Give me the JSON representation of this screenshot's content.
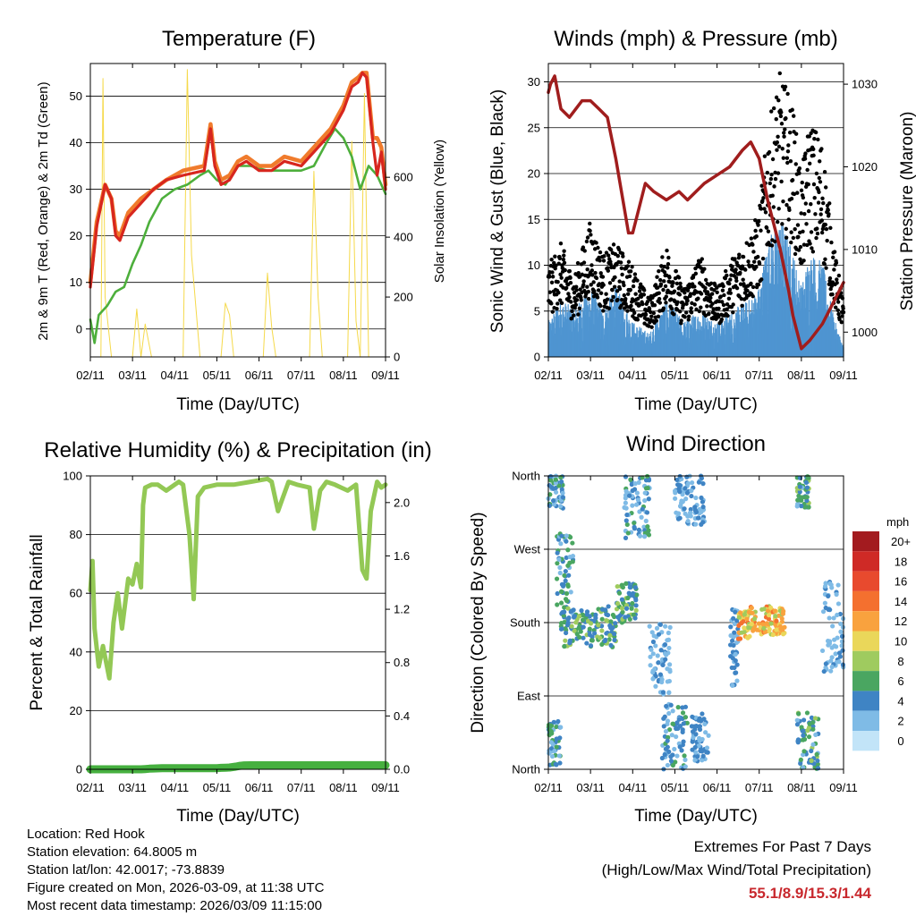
{
  "chart_data": [
    {
      "type": "line",
      "title": "Temperature (F)",
      "xlabel": "Time (Day/UTC)",
      "ylabel": "2m & 9m T (Red, Orange) & 2m Td (Green)",
      "y2label": "Solar Insolation (Yellow)",
      "x_ticks": [
        "02/11",
        "03/11",
        "04/11",
        "05/11",
        "06/11",
        "07/11",
        "08/11",
        "09/11"
      ],
      "ylim": [
        -6,
        57
      ],
      "y_ticks": [
        0,
        10,
        20,
        30,
        40,
        50
      ],
      "y2lim": [
        0,
        980
      ],
      "y2_ticks": [
        0,
        200,
        400,
        600
      ],
      "grid": true,
      "x_day_range": [
        0,
        7
      ],
      "series": [
        {
          "name": "2m T",
          "color": "#d7261e",
          "x": [
            0,
            0.15,
            0.35,
            0.5,
            0.6,
            0.7,
            0.9,
            1.2,
            1.5,
            1.8,
            2.2,
            2.7,
            2.85,
            2.95,
            3.1,
            3.3,
            3.5,
            3.7,
            4,
            4.3,
            4.6,
            5,
            5.3,
            5.7,
            6,
            6.2,
            6.35,
            6.45,
            6.55,
            6.7,
            6.8,
            6.9,
            7
          ],
          "values": [
            9,
            22,
            31,
            28,
            20,
            19,
            24,
            27,
            30,
            32,
            33,
            34,
            43,
            35,
            31,
            32,
            35,
            36,
            34,
            34,
            36,
            35,
            38,
            42,
            47,
            52,
            53,
            55,
            54,
            40,
            33,
            38,
            30
          ]
        },
        {
          "name": "9m T",
          "color": "#f07b2c",
          "x": [
            0,
            0.15,
            0.35,
            0.5,
            0.6,
            0.7,
            0.9,
            1.2,
            1.5,
            1.8,
            2.2,
            2.7,
            2.85,
            2.95,
            3.1,
            3.3,
            3.5,
            3.7,
            4,
            4.3,
            4.6,
            5,
            5.3,
            5.7,
            6,
            6.2,
            6.35,
            6.45,
            6.55,
            6.7,
            6.8,
            6.9,
            7
          ],
          "values": [
            10,
            23,
            31,
            28,
            21,
            20,
            25,
            28,
            30,
            32,
            34,
            35,
            44,
            36,
            32,
            33,
            36,
            37,
            35,
            35,
            37,
            36,
            39,
            43,
            48,
            53,
            54,
            55,
            55,
            41,
            41,
            39,
            31
          ]
        },
        {
          "name": "2m Td",
          "color": "#4daf3c",
          "x": [
            0,
            0.1,
            0.2,
            0.4,
            0.6,
            0.8,
            1.0,
            1.2,
            1.4,
            1.7,
            2.0,
            2.3,
            2.6,
            2.8,
            3.0,
            3.2,
            3.5,
            3.8,
            4.2,
            4.6,
            5.0,
            5.3,
            5.6,
            5.8,
            6.0,
            6.2,
            6.4,
            6.6,
            6.8,
            7
          ],
          "values": [
            2,
            -3,
            3,
            5,
            8,
            9,
            14,
            18,
            23,
            28,
            30,
            31,
            33,
            34,
            32,
            31,
            35,
            35,
            34,
            34,
            34,
            35,
            40,
            43,
            41,
            37,
            30,
            35,
            33,
            29
          ]
        },
        {
          "name": "Solar Insolation",
          "color": "#f5d94a",
          "axis": "y2",
          "x": [
            0,
            0.25,
            0.3,
            0.35,
            0.5,
            0.6,
            1.0,
            1.1,
            1.2,
            1.3,
            1.45,
            2.0,
            2.2,
            2.3,
            2.4,
            2.6,
            3.0,
            3.1,
            3.2,
            3.3,
            3.4,
            3.6,
            4.0,
            4.1,
            4.2,
            4.3,
            4.4,
            4.6,
            5.0,
            5.2,
            5.3,
            5.4,
            5.5,
            5.6,
            5.8,
            6.0,
            6.1,
            6.2,
            6.3,
            6.4,
            6.5,
            6.6,
            7
          ],
          "values": [
            0,
            0,
            930,
            200,
            0,
            0,
            0,
            160,
            0,
            110,
            0,
            0,
            0,
            960,
            340,
            0,
            0,
            0,
            180,
            140,
            0,
            0,
            0,
            0,
            280,
            100,
            0,
            0,
            0,
            0,
            620,
            200,
            0,
            0,
            0,
            0,
            0,
            720,
            120,
            0,
            880,
            0,
            0
          ]
        }
      ]
    },
    {
      "type": "line",
      "title": "Winds (mph) & Pressure (mb)",
      "xlabel": "Time (Day/UTC)",
      "ylabel": "Sonic Wind & Gust (Blue, Black)",
      "y2label": "Station Pressure (Maroon)",
      "x_ticks": [
        "02/11",
        "03/11",
        "04/11",
        "05/11",
        "06/11",
        "07/11",
        "08/11",
        "09/11"
      ],
      "ylim": [
        0,
        32
      ],
      "y_ticks": [
        0,
        5,
        10,
        15,
        20,
        25,
        30
      ],
      "y2lim": [
        997,
        1032.5
      ],
      "y2_ticks": [
        1000,
        1010,
        1020,
        1030
      ],
      "grid": true,
      "x_day_range": [
        0,
        7
      ],
      "series": [
        {
          "name": "Sonic Wind",
          "color": "#4f95d1",
          "x": [
            0,
            0.3,
            0.6,
            1.0,
            1.3,
            1.6,
            2.0,
            2.4,
            2.8,
            3.2,
            3.6,
            4.0,
            4.4,
            4.8,
            5.0,
            5.2,
            5.5,
            5.8,
            6.0,
            6.2,
            6.5,
            6.8,
            7
          ],
          "values": [
            3,
            5,
            4,
            6,
            4,
            6,
            3,
            2,
            5,
            3,
            4,
            3,
            4,
            5,
            6,
            10,
            12,
            9,
            6,
            9,
            8,
            3,
            1
          ]
        },
        {
          "name": "Gust",
          "color": "#000000",
          "x": [
            0,
            0.3,
            0.6,
            1.0,
            1.3,
            1.6,
            2.0,
            2.4,
            2.8,
            3.2,
            3.6,
            4.0,
            4.4,
            4.8,
            5.0,
            5.2,
            5.5,
            5.8,
            6.0,
            6.2,
            6.5,
            6.8,
            7
          ],
          "values": [
            8,
            10,
            7,
            12,
            9,
            10,
            8,
            5,
            10,
            6,
            9,
            6,
            9,
            11,
            13,
            20,
            25,
            22,
            16,
            21,
            19,
            9,
            5
          ]
        },
        {
          "name": "Station Pressure",
          "color": "#a01d1d",
          "axis": "y2",
          "x": [
            0,
            0.05,
            0.15,
            0.3,
            0.5,
            0.8,
            1.0,
            1.2,
            1.4,
            1.6,
            1.8,
            1.9,
            2.0,
            2.2,
            2.3,
            2.5,
            2.8,
            3.1,
            3.3,
            3.5,
            3.7,
            4.0,
            4.3,
            4.6,
            4.8,
            5.0,
            5.2,
            5.5,
            5.7,
            5.8,
            6.0,
            6.2,
            6.5,
            6.8,
            7
          ],
          "values": [
            1029,
            1030,
            1031,
            1027,
            1026,
            1028,
            1028,
            1027,
            1026,
            1021,
            1015,
            1012,
            1012,
            1016,
            1018,
            1017,
            1016,
            1017,
            1016,
            1017,
            1018,
            1019,
            1020,
            1022,
            1023,
            1021,
            1016,
            1010,
            1005,
            1002,
            998,
            999,
            1001,
            1004,
            1006
          ]
        }
      ]
    },
    {
      "type": "line",
      "title": "Relative Humidity (%) & Precipitation (in)",
      "xlabel": "Time (Day/UTC)",
      "ylabel": "Percent & Total Rainfall",
      "x_ticks": [
        "02/11",
        "03/11",
        "04/11",
        "05/11",
        "06/11",
        "07/11",
        "08/11",
        "09/11"
      ],
      "ylim": [
        0,
        100
      ],
      "y_ticks": [
        0,
        20,
        40,
        60,
        80,
        100
      ],
      "y2lim": [
        0,
        2.2
      ],
      "y2_ticks": [
        0.0,
        0.4,
        0.8,
        1.2,
        1.6,
        2.0
      ],
      "y2_tick_labels": [
        "0.0",
        "0.4",
        "0.8",
        "1.2",
        "1.6",
        "2.0"
      ],
      "grid": true,
      "x_day_range": [
        0,
        7
      ],
      "series": [
        {
          "name": "Relative Humidity",
          "color": "#93c855",
          "x": [
            0,
            0.05,
            0.1,
            0.2,
            0.3,
            0.45,
            0.55,
            0.65,
            0.75,
            0.9,
            1.0,
            1.1,
            1.2,
            1.25,
            1.3,
            1.45,
            1.6,
            1.8,
            2.0,
            2.1,
            2.2,
            2.35,
            2.45,
            2.55,
            2.7,
            3.0,
            3.4,
            3.8,
            4.2,
            4.3,
            4.45,
            4.55,
            4.7,
            4.9,
            5.2,
            5.3,
            5.45,
            5.6,
            5.8,
            5.95,
            6.1,
            6.3,
            6.45,
            6.55,
            6.65,
            6.8,
            6.9,
            7
          ],
          "values": [
            61,
            71,
            48,
            35,
            42,
            31,
            50,
            60,
            48,
            65,
            63,
            70,
            62,
            90,
            96,
            97,
            97,
            95,
            97,
            98,
            97,
            80,
            58,
            93,
            96,
            97,
            97,
            98,
            99,
            98,
            88,
            92,
            98,
            97,
            96,
            82,
            95,
            98,
            97,
            96,
            95,
            97,
            68,
            65,
            88,
            98,
            96,
            97
          ]
        },
        {
          "name": "Total Precipitation",
          "color": "#46b03f",
          "x": [
            0,
            1.2,
            1.3,
            1.4,
            1.5,
            1.7,
            2.0,
            2.5,
            3.0,
            3.1,
            3.2,
            3.3,
            3.45,
            3.55,
            3.65,
            3.8,
            4.0,
            4.5,
            5.0,
            5.5,
            5.7,
            6.0,
            6.2,
            7
          ],
          "values": [
            0.0,
            0.0,
            0.1,
            0.2,
            0.28,
            0.4,
            0.4,
            0.4,
            0.4,
            0.5,
            0.55,
            0.6,
            0.9,
            1.2,
            1.34,
            1.36,
            1.36,
            1.36,
            1.36,
            1.36,
            1.38,
            1.4,
            1.4,
            1.4
          ]
        }
      ]
    },
    {
      "type": "scatter",
      "title": "Wind Direction",
      "xlabel": "Time (Day/UTC)",
      "ylabel": "Direction (Colored By Speed)",
      "x_ticks": [
        "02/11",
        "03/11",
        "04/11",
        "05/11",
        "06/11",
        "07/11",
        "08/11",
        "09/11"
      ],
      "y_ticks": [
        0,
        90,
        180,
        270,
        360
      ],
      "y_tick_labels": [
        "North",
        "East",
        "South",
        "West",
        "North"
      ],
      "ylim": [
        0,
        360
      ],
      "grid": true,
      "x_day_range": [
        0,
        7
      ],
      "colorbar": {
        "title": "mph",
        "labels": [
          "20+",
          "18",
          "16",
          "14",
          "12",
          "10",
          "8",
          "6",
          "4",
          "2",
          "0"
        ],
        "colors": [
          "#a31b1f",
          "#cf2a26",
          "#e84a2e",
          "#f4702f",
          "#f9a23e",
          "#ead75a",
          "#9fcb5f",
          "#4aa661",
          "#3f84c4",
          "#7fbbe6",
          "#c2e4f8"
        ]
      },
      "clusters": [
        {
          "x": [
            0.0,
            0.35
          ],
          "dir": [
            320,
            360
          ],
          "speed": [
            1,
            6
          ]
        },
        {
          "x": [
            0.0,
            0.3
          ],
          "dir": [
            0,
            60
          ],
          "speed": [
            1,
            6
          ]
        },
        {
          "x": [
            0.2,
            0.6
          ],
          "dir": [
            190,
            290
          ],
          "speed": [
            2,
            6
          ]
        },
        {
          "x": [
            0.3,
            1.6
          ],
          "dir": [
            150,
            200
          ],
          "speed": [
            3,
            8
          ]
        },
        {
          "x": [
            1.6,
            2.1
          ],
          "dir": [
            180,
            230
          ],
          "speed": [
            3,
            8
          ]
        },
        {
          "x": [
            1.8,
            2.4
          ],
          "dir": [
            280,
            360
          ],
          "speed": [
            1,
            6
          ]
        },
        {
          "x": [
            2.4,
            2.9
          ],
          "dir": [
            90,
            180
          ],
          "speed": [
            1,
            4
          ]
        },
        {
          "x": [
            2.7,
            3.3
          ],
          "dir": [
            0,
            80
          ],
          "speed": [
            2,
            6
          ]
        },
        {
          "x": [
            3.0,
            3.7
          ],
          "dir": [
            300,
            360
          ],
          "speed": [
            1,
            5
          ]
        },
        {
          "x": [
            3.4,
            3.8
          ],
          "dir": [
            10,
            70
          ],
          "speed": [
            2,
            5
          ]
        },
        {
          "x": [
            4.3,
            4.5
          ],
          "dir": [
            100,
            200
          ],
          "speed": [
            2,
            5
          ]
        },
        {
          "x": [
            4.5,
            4.8
          ],
          "dir": [
            160,
            195
          ],
          "speed": [
            8,
            14
          ]
        },
        {
          "x": [
            4.8,
            5.6
          ],
          "dir": [
            165,
            200
          ],
          "speed": [
            8,
            14
          ]
        },
        {
          "x": [
            5.9,
            6.4
          ],
          "dir": [
            0,
            70
          ],
          "speed": [
            2,
            8
          ]
        },
        {
          "x": [
            5.9,
            6.2
          ],
          "dir": [
            320,
            360
          ],
          "speed": [
            2,
            8
          ]
        },
        {
          "x": [
            6.5,
            7.0
          ],
          "dir": [
            120,
            230
          ],
          "speed": [
            1,
            4
          ]
        }
      ]
    }
  ],
  "footer": {
    "location": "Location: Red Hook",
    "elevation": "Station elevation: 64.8005 m",
    "latlon": "Station lat/lon: 42.0017; -73.8839",
    "created": "Figure created on Mon, 2026-03-09, at 11:38 UTC",
    "timestamp": "Most recent data timestamp: 2026/03/09 11:15:00"
  },
  "extremes": {
    "title": "Extremes For Past 7 Days",
    "subtitle": "(High/Low/Max Wind/Total Precipitation)",
    "values": "55.1/8.9/15.3/1.44"
  }
}
